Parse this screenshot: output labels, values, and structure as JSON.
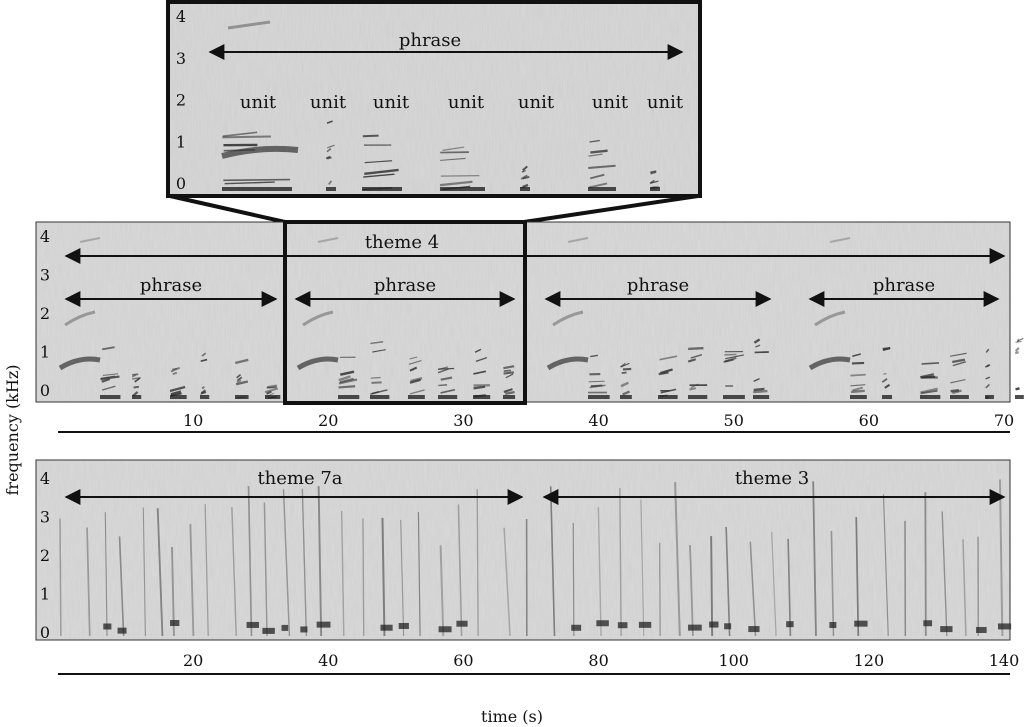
{
  "y_axis_label": "frequency (kHz)",
  "x_axis_label": "time (s)",
  "freq_ticks": [
    "0",
    "1",
    "2",
    "3",
    "4"
  ],
  "zoom_panel": {
    "phrase_label": "phrase",
    "unit_labels": [
      "unit",
      "unit",
      "unit",
      "unit",
      "unit",
      "unit",
      "unit"
    ]
  },
  "panel_a": {
    "theme_label": "theme 4",
    "phrase_labels": [
      "phrase",
      "phrase",
      "phrase",
      "phrase"
    ],
    "time_ticks": [
      "10",
      "20",
      "30",
      "40",
      "50",
      "60",
      "70"
    ],
    "time_range_s": [
      0,
      70
    ]
  },
  "panel_b": {
    "theme_labels": [
      "theme 7a",
      "theme 3"
    ],
    "time_ticks": [
      "20",
      "40",
      "60",
      "80",
      "100",
      "120",
      "140"
    ],
    "time_range_s": [
      0,
      140
    ]
  },
  "colors": {
    "background": "#dcdcdc",
    "stroke": "#111111"
  }
}
